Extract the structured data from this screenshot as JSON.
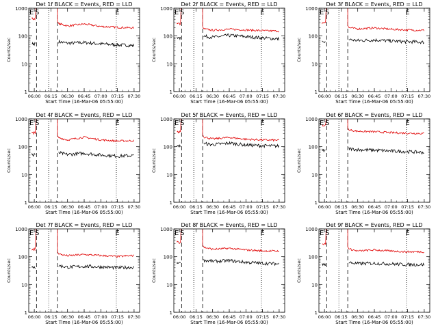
{
  "figure": {
    "xlabel": "Start Time (16-Mar-06 05:55:00)",
    "ylabel": "Counts/sec",
    "ytick_labels": [
      "1",
      "10",
      "100",
      "1000"
    ],
    "xtick_labels": [
      "06:00",
      "06:15",
      "06:30",
      "06:45",
      "07:00",
      "07:15",
      "07:30"
    ],
    "markers": [
      "E",
      "S",
      "E"
    ],
    "colors": {
      "events": "#000000",
      "lld": "#e00000",
      "background": "#ffffff"
    }
  },
  "chart_data": [
    {
      "type": "line",
      "title": "Det 1f BLACK = Events, RED = LLD",
      "xlabel": "Start Time (16-Mar-06 05:55:00)",
      "ylabel": "Counts/sec",
      "y_scale": "log",
      "ylim": [
        1,
        1000
      ],
      "xlim": [
        "05:55",
        "07:35"
      ],
      "series": [
        {
          "name": "Events",
          "color": "#000000",
          "x": [
            "06:22",
            "06:30",
            "06:45",
            "07:00",
            "07:15",
            "07:30"
          ],
          "values": [
            62,
            55,
            58,
            52,
            48,
            45
          ]
        },
        {
          "name": "LLD",
          "color": "#e00000",
          "x": [
            "06:22",
            "06:30",
            "06:45",
            "07:00",
            "07:15",
            "07:30"
          ],
          "values": [
            280,
            230,
            270,
            220,
            205,
            195
          ]
        }
      ]
    },
    {
      "type": "line",
      "title": "Det 2f BLACK = Events, RED = LLD",
      "xlabel": "Start Time (16-Mar-06 05:55:00)",
      "ylabel": "Counts/sec",
      "y_scale": "log",
      "ylim": [
        1,
        1000
      ],
      "xlim": [
        "05:55",
        "07:35"
      ],
      "series": [
        {
          "name": "Events",
          "color": "#000000",
          "x": [
            "06:22",
            "06:30",
            "06:45",
            "07:00",
            "07:15",
            "07:30"
          ],
          "values": [
            98,
            90,
            105,
            95,
            85,
            78
          ]
        },
        {
          "name": "LLD",
          "color": "#e00000",
          "x": [
            "06:22",
            "06:30",
            "06:45",
            "07:00",
            "07:15",
            "07:30"
          ],
          "values": [
            180,
            160,
            175,
            165,
            155,
            150
          ]
        }
      ]
    },
    {
      "type": "line",
      "title": "Det 3f BLACK = Events, RED = LLD",
      "xlabel": "Start Time (16-Mar-06 05:55:00)",
      "ylabel": "Counts/sec",
      "y_scale": "log",
      "ylim": [
        1,
        1000
      ],
      "xlim": [
        "05:55",
        "07:35"
      ],
      "series": [
        {
          "name": "Events",
          "color": "#000000",
          "x": [
            "06:22",
            "06:30",
            "06:45",
            "07:00",
            "07:15",
            "07:30"
          ],
          "values": [
            75,
            68,
            72,
            66,
            62,
            60
          ]
        },
        {
          "name": "LLD",
          "color": "#e00000",
          "x": [
            "06:22",
            "06:30",
            "06:45",
            "07:00",
            "07:15",
            "07:30"
          ],
          "values": [
            200,
            180,
            195,
            175,
            165,
            160
          ]
        }
      ]
    },
    {
      "type": "line",
      "title": "Det 4f BLACK = Events, RED = LLD",
      "xlabel": "Start Time (16-Mar-06 05:55:00)",
      "ylabel": "Counts/sec",
      "y_scale": "log",
      "ylim": [
        1,
        1000
      ],
      "xlim": [
        "05:55",
        "07:35"
      ],
      "series": [
        {
          "name": "Events",
          "color": "#000000",
          "x": [
            "06:22",
            "06:30",
            "06:45",
            "07:00",
            "07:15",
            "07:30"
          ],
          "values": [
            60,
            52,
            58,
            50,
            46,
            48
          ]
        },
        {
          "name": "LLD",
          "color": "#e00000",
          "x": [
            "06:22",
            "06:30",
            "06:45",
            "07:00",
            "07:15",
            "07:30"
          ],
          "values": [
            210,
            175,
            220,
            175,
            160,
            165
          ]
        }
      ]
    },
    {
      "type": "line",
      "title": "Det 5f BLACK = Events, RED = LLD",
      "xlabel": "Start Time (16-Mar-06 05:55:00)",
      "ylabel": "Counts/sec",
      "y_scale": "log",
      "ylim": [
        1,
        1000
      ],
      "xlim": [
        "05:55",
        "07:35"
      ],
      "series": [
        {
          "name": "Events",
          "color": "#000000",
          "x": [
            "06:22",
            "06:30",
            "06:45",
            "07:00",
            "07:15",
            "07:30"
          ],
          "values": [
            130,
            118,
            135,
            115,
            108,
            105
          ]
        },
        {
          "name": "LLD",
          "color": "#e00000",
          "x": [
            "06:22",
            "06:30",
            "06:45",
            "07:00",
            "07:15",
            "07:30"
          ],
          "values": [
            225,
            190,
            215,
            185,
            175,
            170
          ]
        }
      ]
    },
    {
      "type": "line",
      "title": "Det 6f BLACK = Events, RED = LLD",
      "xlabel": "Start Time (16-Mar-06 05:55:00)",
      "ylabel": "Counts/sec",
      "y_scale": "log",
      "ylim": [
        1,
        1000
      ],
      "xlim": [
        "05:55",
        "07:35"
      ],
      "series": [
        {
          "name": "Events",
          "color": "#000000",
          "x": [
            "06:22",
            "06:30",
            "06:45",
            "07:00",
            "07:15",
            "07:30"
          ],
          "values": [
            85,
            78,
            75,
            70,
            66,
            62
          ]
        },
        {
          "name": "LLD",
          "color": "#e00000",
          "x": [
            "06:22",
            "06:30",
            "06:45",
            "07:00",
            "07:15",
            "07:30"
          ],
          "values": [
            400,
            360,
            345,
            320,
            305,
            300
          ]
        }
      ]
    },
    {
      "type": "line",
      "title": "Det 7f BLACK = Events, RED = LLD",
      "xlabel": "Start Time (16-Mar-06 05:55:00)",
      "ylabel": "Counts/sec",
      "y_scale": "log",
      "ylim": [
        1,
        1000
      ],
      "xlim": [
        "05:55",
        "07:35"
      ],
      "series": [
        {
          "name": "Events",
          "color": "#000000",
          "x": [
            "06:22",
            "06:30",
            "06:45",
            "07:00",
            "07:15",
            "07:30"
          ],
          "values": [
            48,
            42,
            45,
            43,
            40,
            42
          ]
        },
        {
          "name": "LLD",
          "color": "#e00000",
          "x": [
            "06:22",
            "06:30",
            "06:45",
            "07:00",
            "07:15",
            "07:30"
          ],
          "values": [
            125,
            108,
            120,
            110,
            102,
            110
          ]
        }
      ]
    },
    {
      "type": "line",
      "title": "Det 8f BLACK = Events, RED = LLD",
      "xlabel": "Start Time (16-Mar-06 05:55:00)",
      "ylabel": "Counts/sec",
      "y_scale": "log",
      "ylim": [
        1,
        1000
      ],
      "xlim": [
        "05:55",
        "07:35"
      ],
      "series": [
        {
          "name": "Events",
          "color": "#000000",
          "x": [
            "06:22",
            "06:30",
            "06:45",
            "07:00",
            "07:15",
            "07:30"
          ],
          "values": [
            75,
            68,
            72,
            63,
            58,
            55
          ]
        },
        {
          "name": "LLD",
          "color": "#e00000",
          "x": [
            "06:22",
            "06:30",
            "06:45",
            "07:00",
            "07:15",
            "07:30"
          ],
          "values": [
            220,
            185,
            200,
            175,
            162,
            160
          ]
        }
      ]
    },
    {
      "type": "line",
      "title": "Det 9f BLACK = Events, RED = LLD",
      "xlabel": "Start Time (16-Mar-06 05:55:00)",
      "ylabel": "Counts/sec",
      "y_scale": "log",
      "ylim": [
        1,
        1000
      ],
      "xlim": [
        "05:55",
        "07:35"
      ],
      "series": [
        {
          "name": "Events",
          "color": "#000000",
          "x": [
            "06:22",
            "06:30",
            "06:45",
            "07:00",
            "07:15",
            "07:30"
          ],
          "values": [
            62,
            56,
            58,
            55,
            52,
            52
          ]
        },
        {
          "name": "LLD",
          "color": "#e00000",
          "x": [
            "06:22",
            "06:30",
            "06:45",
            "07:00",
            "07:15",
            "07:30"
          ],
          "values": [
            190,
            160,
            175,
            160,
            150,
            150
          ]
        }
      ]
    }
  ]
}
